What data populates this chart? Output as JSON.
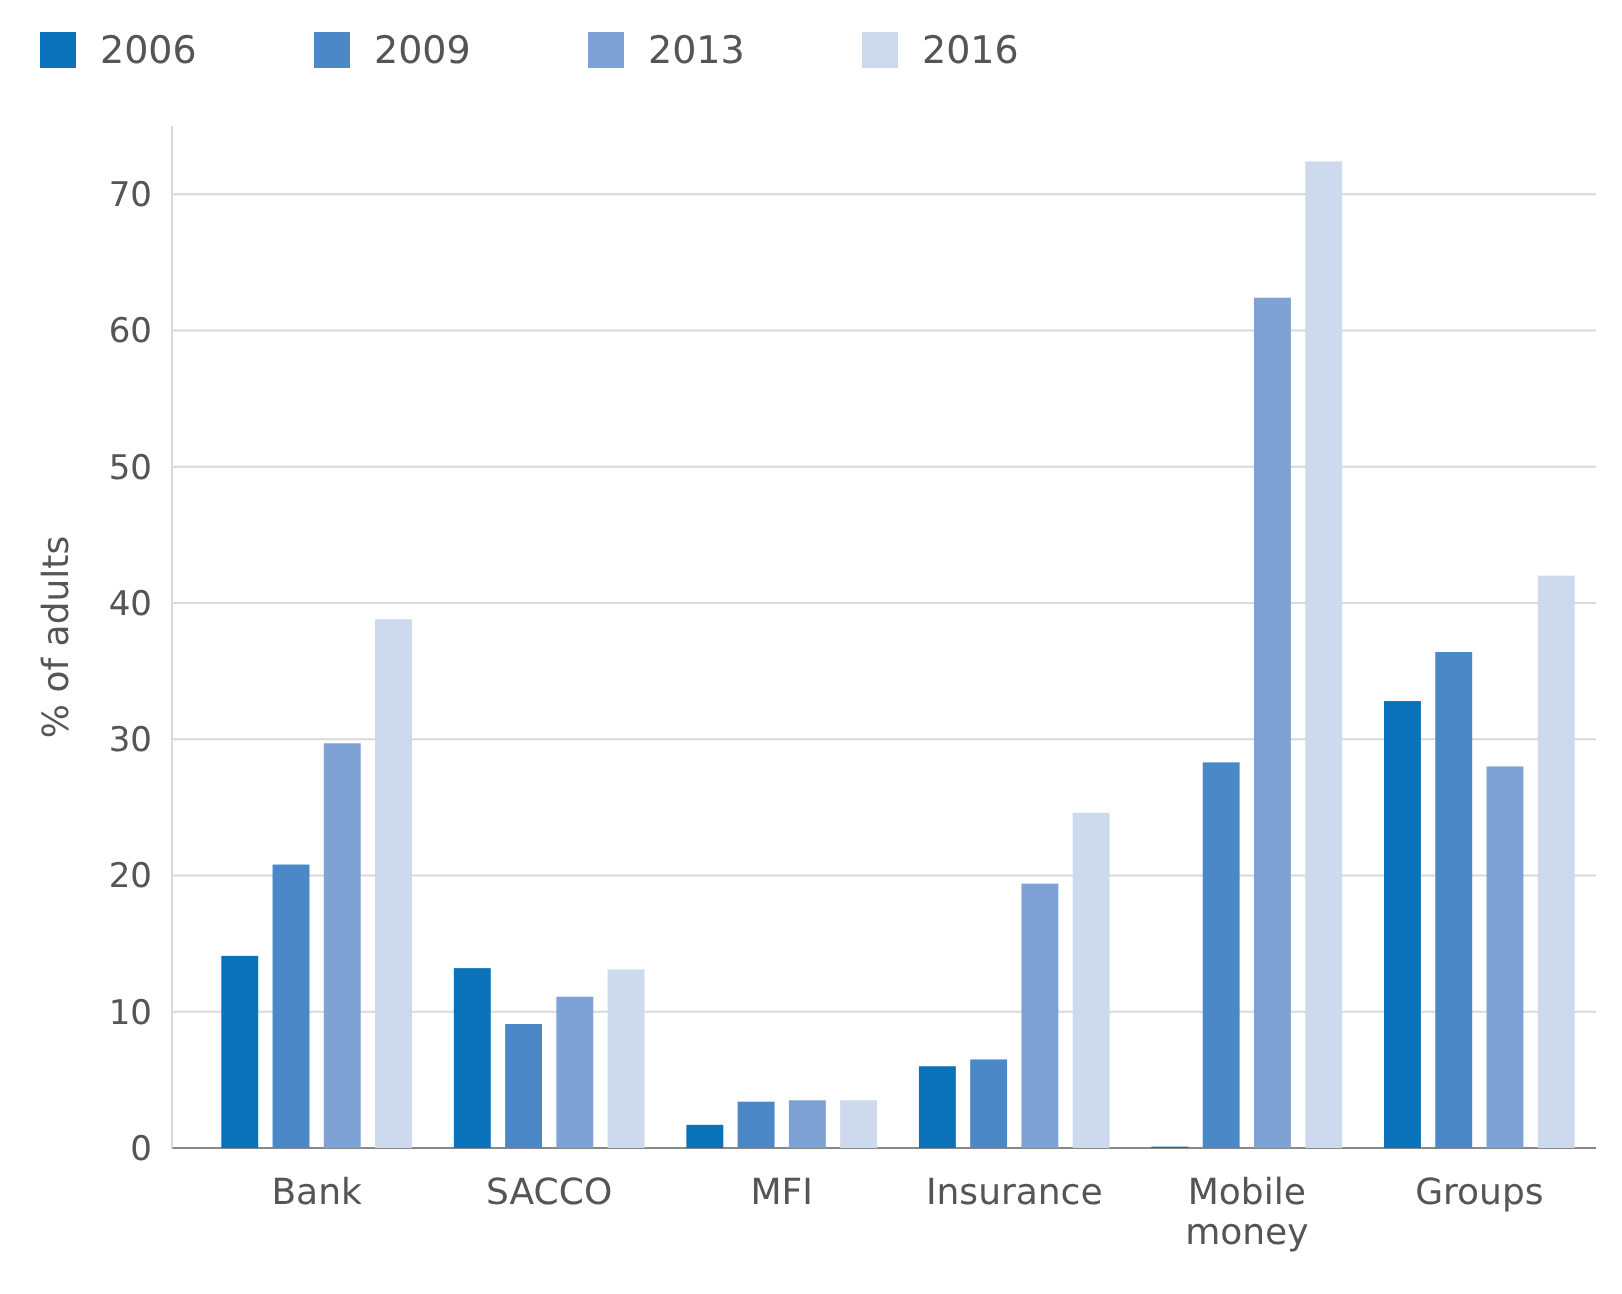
{
  "chart_data": {
    "type": "bar",
    "ylabel": "% of adults",
    "categories": [
      "Bank",
      "SACCO",
      "MFI",
      "Insurance",
      "Mobile money",
      "Groups"
    ],
    "series": [
      {
        "name": "2006",
        "color": "#0a72ba",
        "values": [
          14.1,
          13.2,
          1.7,
          6.0,
          0.1,
          32.8
        ]
      },
      {
        "name": "2009",
        "color": "#4a88c8",
        "values": [
          20.8,
          9.1,
          3.4,
          6.5,
          28.3,
          36.4
        ]
      },
      {
        "name": "2013",
        "color": "#7ea2d4",
        "values": [
          29.7,
          11.1,
          3.5,
          19.4,
          62.4,
          28.0
        ]
      },
      {
        "name": "2016",
        "color": "#cdd9ec",
        "values": [
          38.8,
          13.1,
          3.5,
          24.6,
          72.4,
          42.0
        ]
      }
    ],
    "ylim": [
      0,
      75
    ],
    "yticks": [
      0,
      10,
      20,
      30,
      40,
      50,
      60,
      70
    ],
    "grid": "y",
    "legend": "top left"
  }
}
